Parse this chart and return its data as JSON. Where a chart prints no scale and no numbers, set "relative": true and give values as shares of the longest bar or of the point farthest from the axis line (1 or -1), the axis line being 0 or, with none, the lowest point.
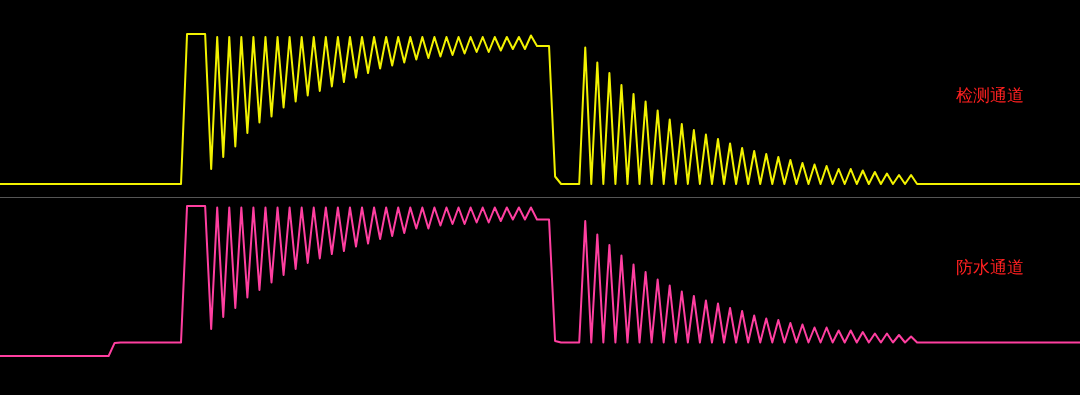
{
  "chart_data": [
    {
      "type": "line",
      "relative": true,
      "categories": [
        null,
        null,
        null,
        null,
        null,
        null,
        null,
        null,
        null,
        null,
        null,
        null,
        null,
        null,
        null,
        null,
        null,
        null,
        null,
        null,
        null,
        null,
        null,
        null,
        null,
        null,
        null,
        null,
        null,
        null,
        null,
        null,
        null,
        null,
        null,
        null,
        null,
        null,
        null,
        null,
        null,
        null,
        null,
        null,
        null,
        null,
        null,
        null,
        null,
        null,
        null,
        null,
        null,
        null,
        null,
        null,
        null,
        null,
        null,
        null,
        null,
        null,
        null,
        null,
        null,
        null,
        null,
        null,
        null,
        null,
        null,
        null,
        null,
        null,
        null,
        null,
        null,
        null,
        null,
        null,
        null,
        null,
        null,
        null,
        null,
        null,
        null,
        null,
        null,
        null,
        null,
        null,
        null,
        null,
        null,
        null,
        null,
        null,
        null,
        null,
        null,
        null,
        null,
        null,
        null,
        null,
        null,
        null,
        null,
        null,
        null,
        null,
        null,
        null,
        null,
        null,
        null,
        null,
        null,
        null,
        null,
        null,
        null,
        null,
        null,
        null,
        null,
        null,
        null,
        null,
        null,
        null,
        null,
        null,
        null,
        null,
        null,
        null,
        null,
        null,
        null,
        null,
        null,
        null,
        null,
        null,
        null,
        null,
        null,
        null,
        null,
        null,
        null,
        null,
        null,
        null,
        null,
        null,
        null,
        null,
        null,
        null,
        null,
        null,
        null,
        null,
        null,
        null,
        null,
        null,
        null,
        null,
        null,
        null,
        null,
        null,
        null,
        null,
        null,
        null
      ],
      "marker": "none",
      "legend": false,
      "series": [
        {
          "name": "检测通道",
          "color": "#f2f200",
          "values": [
            0,
            0,
            0,
            0,
            0,
            0,
            0,
            0,
            0,
            0,
            0,
            0,
            0,
            0,
            0,
            0,
            0,
            0,
            0,
            0,
            0,
            0,
            0,
            0,
            0,
            0,
            0,
            0,
            0,
            0,
            0,
            1,
            1,
            1,
            1,
            0.1,
            0.98,
            0.18,
            0.98,
            0.25,
            0.98,
            0.34,
            0.98,
            0.41,
            0.98,
            0.45,
            0.98,
            0.51,
            0.98,
            0.55,
            0.98,
            0.59,
            0.98,
            0.62,
            0.98,
            0.65,
            0.98,
            0.68,
            0.98,
            0.71,
            0.98,
            0.74,
            0.98,
            0.77,
            0.98,
            0.79,
            0.98,
            0.81,
            0.98,
            0.83,
            0.98,
            0.84,
            0.98,
            0.85,
            0.98,
            0.86,
            0.98,
            0.87,
            0.98,
            0.88,
            0.98,
            0.88,
            0.98,
            0.89,
            0.98,
            0.9,
            0.98,
            0.9,
            0.99,
            0.92,
            0.92,
            0.92,
            0.05,
            0,
            0,
            0,
            0,
            0.91,
            0,
            0.81,
            0,
            0.74,
            0,
            0.66,
            0,
            0.6,
            0,
            0.55,
            0,
            0.49,
            0,
            0.43,
            0,
            0.4,
            0,
            0.36,
            0,
            0.33,
            0,
            0.3,
            0,
            0.27,
            0,
            0.24,
            0,
            0.22,
            0,
            0.2,
            0,
            0.18,
            0,
            0.16,
            0,
            0.14,
            0,
            0.13,
            0,
            0.12,
            0,
            0.1,
            0,
            0.1,
            0,
            0.09,
            0,
            0.08,
            0,
            0.07,
            0,
            0.06,
            0,
            0.06,
            0,
            0,
            0,
            0,
            0,
            0,
            0,
            0,
            0,
            0,
            0,
            0,
            0,
            0,
            0,
            0,
            0,
            0,
            0,
            0,
            0,
            0,
            0,
            0,
            0,
            0,
            0,
            0
          ]
        }
      ]
    },
    {
      "type": "line",
      "relative": true,
      "categories": [
        null,
        null,
        null,
        null,
        null,
        null,
        null,
        null,
        null,
        null,
        null,
        null,
        null,
        null,
        null,
        null,
        null,
        null,
        null,
        null,
        null,
        null,
        null,
        null,
        null,
        null,
        null,
        null,
        null,
        null,
        null,
        null,
        null,
        null,
        null,
        null,
        null,
        null,
        null,
        null,
        null,
        null,
        null,
        null,
        null,
        null,
        null,
        null,
        null,
        null,
        null,
        null,
        null,
        null,
        null,
        null,
        null,
        null,
        null,
        null,
        null,
        null,
        null,
        null,
        null,
        null,
        null,
        null,
        null,
        null,
        null,
        null,
        null,
        null,
        null,
        null,
        null,
        null,
        null,
        null,
        null,
        null,
        null,
        null,
        null,
        null,
        null,
        null,
        null,
        null,
        null,
        null,
        null,
        null,
        null,
        null,
        null,
        null,
        null,
        null,
        null,
        null,
        null,
        null,
        null,
        null,
        null,
        null,
        null,
        null,
        null,
        null,
        null,
        null,
        null,
        null,
        null,
        null,
        null,
        null,
        null,
        null,
        null,
        null,
        null,
        null,
        null,
        null,
        null,
        null,
        null,
        null,
        null,
        null,
        null,
        null,
        null,
        null,
        null,
        null,
        null,
        null,
        null,
        null,
        null,
        null,
        null,
        null,
        null,
        null,
        null,
        null,
        null,
        null,
        null,
        null,
        null,
        null,
        null,
        null,
        null,
        null,
        null,
        null,
        null,
        null,
        null,
        null,
        null,
        null,
        null,
        null,
        null,
        null,
        null,
        null,
        null,
        null,
        null,
        null
      ],
      "marker": "none",
      "legend": false,
      "series": [
        {
          "name": "防水通道",
          "color": "#ff3fa0",
          "values": [
            0,
            0,
            0,
            0,
            0,
            0,
            0,
            0,
            0,
            0,
            0,
            0,
            0,
            0,
            0,
            0,
            0,
            0,
            0,
            0.087,
            0.09,
            0.09,
            0.09,
            0.09,
            0.09,
            0.09,
            0.09,
            0.09,
            0.09,
            0.09,
            0.09,
            1,
            1,
            1,
            1,
            0.18,
            0.99,
            0.26,
            0.99,
            0.32,
            0.99,
            0.39,
            0.99,
            0.44,
            0.99,
            0.49,
            0.99,
            0.54,
            0.99,
            0.58,
            0.99,
            0.62,
            0.99,
            0.65,
            0.99,
            0.68,
            0.99,
            0.7,
            0.99,
            0.73,
            0.99,
            0.75,
            0.99,
            0.78,
            0.99,
            0.8,
            0.99,
            0.82,
            0.99,
            0.85,
            0.99,
            0.85,
            0.99,
            0.87,
            0.99,
            0.88,
            0.99,
            0.88,
            0.99,
            0.89,
            0.99,
            0.89,
            0.99,
            0.9,
            0.99,
            0.91,
            0.99,
            0.91,
            0.99,
            0.91,
            0.91,
            0.91,
            0.1,
            0.09,
            0.09,
            0.09,
            0.09,
            0.9,
            0.09,
            0.81,
            0.09,
            0.74,
            0.09,
            0.67,
            0.09,
            0.61,
            0.09,
            0.56,
            0.09,
            0.51,
            0.09,
            0.47,
            0.09,
            0.43,
            0.09,
            0.4,
            0.09,
            0.37,
            0.09,
            0.35,
            0.09,
            0.32,
            0.09,
            0.3,
            0.09,
            0.27,
            0.09,
            0.25,
            0.09,
            0.24,
            0.09,
            0.22,
            0.09,
            0.21,
            0.09,
            0.19,
            0.09,
            0.19,
            0.09,
            0.17,
            0.09,
            0.17,
            0.09,
            0.16,
            0.09,
            0.15,
            0.09,
            0.15,
            0.09,
            0.14,
            0.09,
            0.13,
            0.09,
            0.09,
            0.09,
            0.09,
            0.09,
            0.09,
            0.09,
            0.09,
            0.09,
            0.09,
            0.09,
            0.09,
            0.09,
            0.09,
            0.09,
            0.09,
            0.09,
            0.09,
            0.09,
            0.09,
            0.09,
            0.09,
            0.09,
            0.09,
            0.09,
            0.09,
            0.09,
            0.09
          ]
        }
      ]
    }
  ]
}
